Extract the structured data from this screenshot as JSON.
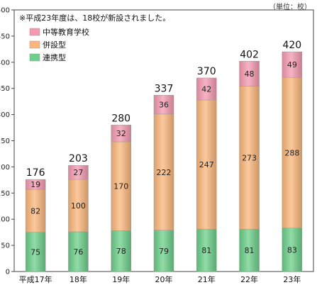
{
  "unit_label": "（単位：校）",
  "note": "※平成23年度は、18校が新設されました。",
  "colors": {
    "中等教育学校": "#f49ab0",
    "併設型": "#fbb77b",
    "連携型": "#6ccf8a"
  },
  "chart_data": {
    "type": "bar",
    "stacked": true,
    "categories": [
      "平成17年",
      "18年",
      "19年",
      "20年",
      "21年",
      "22年",
      "23年"
    ],
    "series": [
      {
        "name": "連携型",
        "values": [
          75,
          76,
          78,
          79,
          81,
          81,
          83
        ]
      },
      {
        "name": "併設型",
        "values": [
          82,
          100,
          170,
          222,
          247,
          273,
          288
        ]
      },
      {
        "name": "中等教育学校",
        "values": [
          19,
          27,
          32,
          36,
          42,
          48,
          49
        ]
      }
    ],
    "totals": [
      176,
      203,
      280,
      337,
      370,
      402,
      420
    ],
    "legend_order": [
      "中等教育学校",
      "併設型",
      "連携型"
    ],
    "legend_position": "top-left",
    "ylim": [
      0,
      500
    ],
    "yticks": [
      0,
      50,
      100,
      150,
      200,
      250,
      300,
      350,
      400,
      450,
      500
    ],
    "grid": false,
    "title": "",
    "xlabel": "",
    "ylabel": ""
  }
}
